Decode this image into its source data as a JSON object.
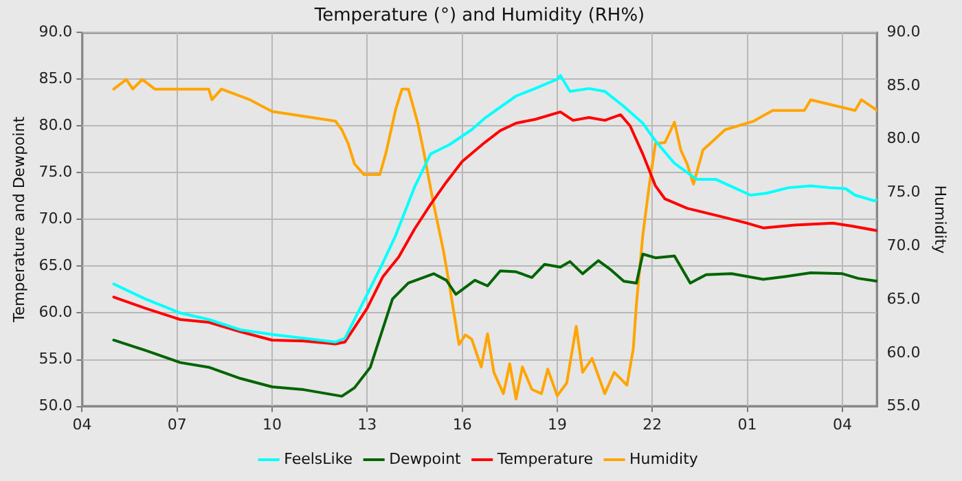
{
  "chart_data": {
    "type": "line",
    "title": "Temperature (°) and Humidity (RH%)",
    "ylabel": "Temperature and Dewpoint",
    "y2label": "Humidity",
    "xlim": [
      "--01-01T04:00",
      "--01-02T05:06"
    ],
    "xticks": [
      {
        "value": "--01-01T04:00",
        "label": "04"
      },
      {
        "value": "--01-01T07:00",
        "label": "07"
      },
      {
        "value": "--01-01T10:00",
        "label": "10"
      },
      {
        "value": "--01-01T13:00",
        "label": "13"
      },
      {
        "value": "--01-01T16:00",
        "label": "16"
      },
      {
        "value": "--01-01T19:00",
        "label": "19"
      },
      {
        "value": "--01-01T22:00",
        "label": "22"
      },
      {
        "value": "--01-02T01:00",
        "label": "01"
      },
      {
        "value": "--01-02T04:00",
        "label": "04"
      }
    ],
    "ylim": [
      50,
      90
    ],
    "yticks": [
      {
        "value": 50,
        "label": "50.0"
      },
      {
        "value": 55,
        "label": "55.0"
      },
      {
        "value": 60,
        "label": "60.0"
      },
      {
        "value": 65,
        "label": "65.0"
      },
      {
        "value": 70,
        "label": "70.0"
      },
      {
        "value": 75,
        "label": "75.0"
      },
      {
        "value": 80,
        "label": "80.0"
      },
      {
        "value": 85,
        "label": "85.0"
      },
      {
        "value": 90,
        "label": "90.0"
      }
    ],
    "y2lim": [
      55,
      90
    ],
    "y2ticks": [
      {
        "value": 55,
        "label": "55.0"
      },
      {
        "value": 60,
        "label": "60.0"
      },
      {
        "value": 65,
        "label": "65.0"
      },
      {
        "value": 70,
        "label": "70.0"
      },
      {
        "value": 75,
        "label": "75.0"
      },
      {
        "value": 80,
        "label": "80.0"
      },
      {
        "value": 85,
        "label": "85.0"
      },
      {
        "value": 90,
        "label": "90.0"
      }
    ],
    "grid": true,
    "legend": "bottom",
    "marker": "none",
    "line_style": "solid",
    "series": [
      {
        "name": "FeelsLike",
        "color": "#00ffff",
        "x": [
          "--01-01T05:00",
          "--01-01T06:00",
          "--01-01T07:06",
          "--01-01T08:00",
          "--01-01T09:00",
          "--01-01T10:00",
          "--01-01T11:00",
          "--01-01T12:00",
          "--01-01T12:18",
          "--01-01T13:00",
          "--01-01T13:30",
          "--01-01T13:54",
          "--01-01T14:30",
          "--01-01T15:00",
          "--01-01T15:18",
          "--01-01T15:36",
          "--01-01T16:18",
          "--01-01T16:42",
          "--01-01T17:42",
          "--01-01T18:18",
          "--01-01T19:00",
          "--01-01T19:06",
          "--01-01T19:24",
          "--01-01T20:00",
          "--01-01T20:30",
          "--01-01T21:06",
          "--01-01T21:42",
          "--01-01T22:06",
          "--01-01T22:42",
          "--01-01T23:24",
          "--01-02T00:00",
          "--01-02T01:06",
          "--01-02T01:36",
          "--01-02T02:18",
          "--01-02T03:00",
          "--01-02T03:36",
          "--01-02T04:06",
          "--01-02T04:24",
          "--01-02T05:00",
          "--01-02T05:06"
        ],
        "values": [
          63.1,
          61.5,
          60.0,
          59.3,
          58.2,
          57.7,
          57.3,
          56.9,
          57.3,
          62.0,
          65.4,
          68.3,
          73.5,
          77.0,
          77.5,
          78.0,
          79.6,
          80.8,
          83.2,
          84.0,
          85.0,
          85.4,
          83.7,
          84.0,
          83.7,
          82.1,
          80.3,
          78.4,
          76.0,
          74.3,
          74.3,
          72.6,
          72.8,
          73.4,
          73.6,
          73.4,
          73.3,
          72.6,
          72.0,
          72.1
        ]
      },
      {
        "name": "Dewpoint",
        "color": "#006400",
        "x": [
          "--01-01T05:00",
          "--01-01T06:00",
          "--01-01T07:06",
          "--01-01T08:00",
          "--01-01T09:00",
          "--01-01T10:00",
          "--01-01T11:00",
          "--01-01T12:12",
          "--01-01T12:36",
          "--01-01T13:06",
          "--01-01T13:48",
          "--01-01T14:18",
          "--01-01T15:06",
          "--01-01T15:30",
          "--01-01T15:48",
          "--01-01T16:24",
          "--01-01T16:48",
          "--01-01T17:12",
          "--01-01T17:42",
          "--01-01T18:12",
          "--01-01T18:36",
          "--01-01T19:06",
          "--01-01T19:24",
          "--01-01T19:48",
          "--01-01T20:18",
          "--01-01T20:42",
          "--01-01T21:06",
          "--01-01T21:30",
          "--01-01T21:42",
          "--01-01T22:06",
          "--01-01T22:42",
          "--01-01T23:12",
          "--01-01T23:42",
          "--01-02T00:30",
          "--01-02T01:30",
          "--01-02T02:12",
          "--01-02T03:00",
          "--01-02T04:00",
          "--01-02T04:30",
          "--01-02T05:06"
        ],
        "values": [
          57.1,
          56.0,
          54.7,
          54.2,
          53.0,
          52.1,
          51.8,
          51.1,
          52.0,
          54.2,
          61.5,
          63.2,
          64.2,
          63.5,
          62.0,
          63.5,
          62.9,
          64.5,
          64.4,
          63.8,
          65.2,
          64.9,
          65.5,
          64.2,
          65.6,
          64.6,
          63.4,
          63.2,
          66.3,
          65.9,
          66.1,
          63.2,
          64.1,
          64.2,
          63.6,
          63.9,
          64.3,
          64.2,
          63.7,
          63.4
        ]
      },
      {
        "name": "Temperature",
        "color": "#ff0000",
        "x": [
          "--01-01T05:00",
          "--01-01T06:00",
          "--01-01T07:06",
          "--01-01T08:00",
          "--01-01T09:00",
          "--01-01T10:00",
          "--01-01T11:00",
          "--01-01T12:00",
          "--01-01T12:18",
          "--01-01T13:00",
          "--01-01T13:30",
          "--01-01T14:00",
          "--01-01T14:30",
          "--01-01T15:00",
          "--01-01T15:30",
          "--01-01T16:00",
          "--01-01T16:42",
          "--01-01T17:12",
          "--01-01T17:42",
          "--01-01T18:18",
          "--01-01T19:06",
          "--01-01T19:30",
          "--01-01T20:00",
          "--01-01T20:30",
          "--01-01T21:00",
          "--01-01T21:18",
          "--01-01T21:42",
          "--01-01T22:06",
          "--01-01T22:24",
          "--01-01T23:06",
          "--01-02T00:18",
          "--01-02T01:00",
          "--01-02T01:30",
          "--01-02T02:30",
          "--01-02T03:42",
          "--01-02T04:18",
          "--01-02T05:06"
        ],
        "values": [
          61.7,
          60.5,
          59.3,
          59.0,
          58.0,
          57.1,
          57.0,
          56.7,
          56.9,
          60.5,
          63.9,
          66.0,
          69.0,
          71.6,
          74.0,
          76.2,
          78.2,
          79.5,
          80.3,
          80.7,
          81.5,
          80.6,
          80.9,
          80.6,
          81.2,
          80.0,
          77.0,
          73.6,
          72.2,
          71.2,
          70.2,
          69.6,
          69.1,
          69.4,
          69.6,
          69.3,
          68.8
        ]
      },
      {
        "name": "Humidity",
        "color": "#ffa500",
        "axis": "y2",
        "x": [
          "--01-01T05:00",
          "--01-01T05:24",
          "--01-01T05:36",
          "--01-01T05:54",
          "--01-01T06:18",
          "--01-01T08:00",
          "--01-01T08:06",
          "--01-01T08:24",
          "--01-01T09:18",
          "--01-01T10:00",
          "--01-01T12:00",
          "--01-01T12:12",
          "--01-01T12:24",
          "--01-01T12:36",
          "--01-01T12:54",
          "--01-01T13:24",
          "--01-01T13:36",
          "--01-01T13:54",
          "--01-01T14:06",
          "--01-01T14:18",
          "--01-01T14:36",
          "--01-01T14:48",
          "--01-01T15:06",
          "--01-01T15:24",
          "--01-01T15:36",
          "--01-01T15:54",
          "--01-01T16:06",
          "--01-01T16:18",
          "--01-01T16:36",
          "--01-01T16:48",
          "--01-01T17:00",
          "--01-01T17:18",
          "--01-01T17:30",
          "--01-01T17:42",
          "--01-01T17:54",
          "--01-01T18:12",
          "--01-01T18:30",
          "--01-01T18:42",
          "--01-01T19:00",
          "--01-01T19:18",
          "--01-01T19:36",
          "--01-01T19:48",
          "--01-01T20:06",
          "--01-01T20:30",
          "--01-01T20:48",
          "--01-01T21:12",
          "--01-01T21:24",
          "--01-01T21:30",
          "--01-01T21:42",
          "--01-01T21:54",
          "--01-01T22:06",
          "--01-01T22:24",
          "--01-01T22:42",
          "--01-01T22:54",
          "--01-01T23:06",
          "--01-01T23:18",
          "--01-01T23:36",
          "--01-01T23:54",
          "--01-02T00:18",
          "--01-02T01:12",
          "--01-02T01:48",
          "--01-02T02:48",
          "--01-02T03:00",
          "--01-02T04:24",
          "--01-02T04:36",
          "--01-02T05:06"
        ],
        "values": [
          84.7,
          85.6,
          84.7,
          85.6,
          84.7,
          84.7,
          83.7,
          84.7,
          83.7,
          82.6,
          81.7,
          80.9,
          79.6,
          77.7,
          76.7,
          76.7,
          78.8,
          82.8,
          84.7,
          84.7,
          81.5,
          78.6,
          73.9,
          69.7,
          66.3,
          60.8,
          61.7,
          61.3,
          58.7,
          61.8,
          58.2,
          56.2,
          59.0,
          55.7,
          58.7,
          56.6,
          56.2,
          58.5,
          56.0,
          57.2,
          62.5,
          58.2,
          59.5,
          56.2,
          58.2,
          57.0,
          60.4,
          64.6,
          71.0,
          75.6,
          79.6,
          79.7,
          81.6,
          79.0,
          77.7,
          75.8,
          79.0,
          79.8,
          80.9,
          81.7,
          82.7,
          82.7,
          83.7,
          82.7,
          83.7,
          82.7
        ]
      }
    ]
  }
}
